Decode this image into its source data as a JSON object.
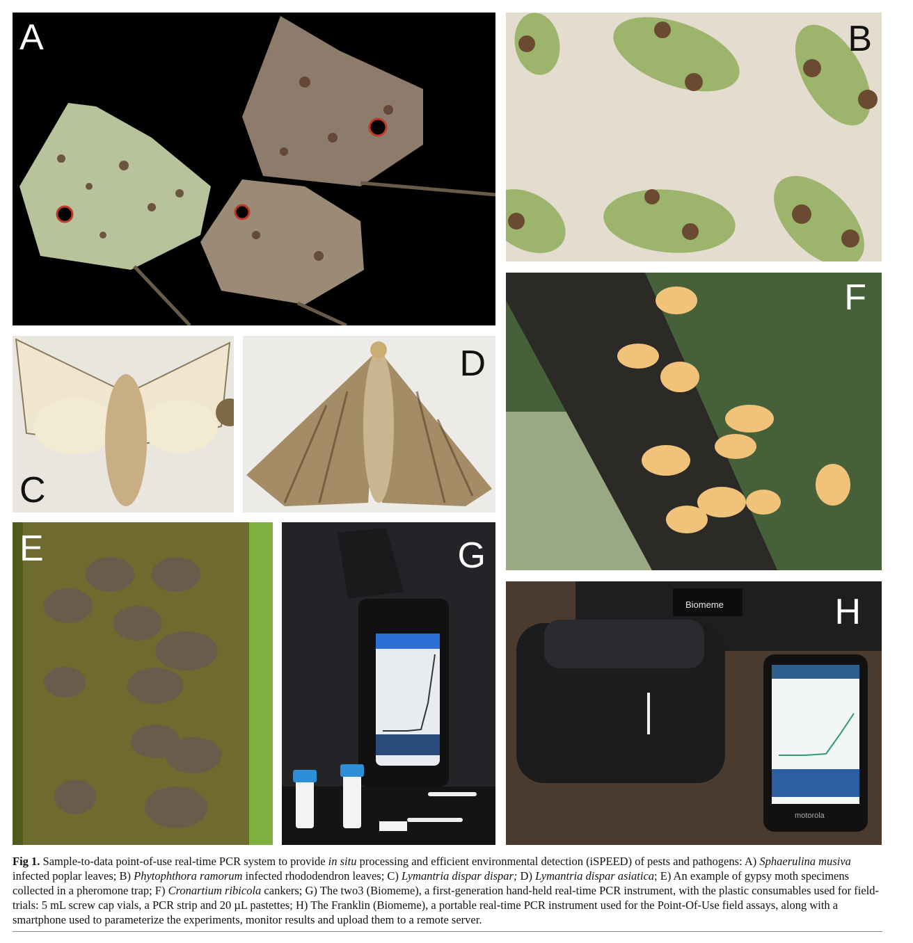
{
  "figure": {
    "panels": {
      "A": {
        "label": "A",
        "subject": "poplar leaves"
      },
      "B": {
        "label": "B",
        "subject": "rhododendron leaves"
      },
      "C": {
        "label": "C",
        "subject": "moth"
      },
      "D": {
        "label": "D",
        "subject": "moth"
      },
      "E": {
        "label": "E",
        "subject": "pheromone trap"
      },
      "F": {
        "label": "F",
        "subject": "cankers"
      },
      "G": {
        "label": "G",
        "subject": "two3 instrument"
      },
      "H": {
        "label": "H",
        "subject": "Franklin instrument",
        "brand_text": "Biomeme",
        "phone_brand": "motorola"
      }
    },
    "caption": {
      "lead": "Fig 1.",
      "s1": " Sample-to-data point-of-use real-time PCR system to provide ",
      "s1_italic": "in situ",
      "s2": " processing and efficient environmental detection (iSPEED) of pests and pathogens: A) ",
      "a_species": "Sphaerulina musiva",
      "a_text": " infected poplar leaves; B) ",
      "b_species": "Phytophthora ramorum",
      "b_text": " infected rhododendron leaves; C) ",
      "c_species": "Lymantria dispar dispar;",
      "c_text": " D) ",
      "d_species": "Lymantria dispar asiatica",
      "d_text": "; E) An example of gypsy moth specimens collected in a pheromone trap; F) ",
      "f_species": "Cronartium ribicola",
      "f_text": " cankers; G) The two3 (Biomeme), a first-generation hand-held real-time PCR instrument, with the plastic consumables used for field-trials: 5 mL screw cap vials, a PCR strip and 20 µL pastettes; H) The Franklin (Biomeme), a portable real-time PCR instrument used for the Point-Of-Use field assays, along with a smartphone used to parameterize the experiments, monitor results and upload them to a remote server."
    }
  },
  "colors": {
    "leaf_green": "#b9c79a",
    "leaf_brown": "#8a7a6a",
    "lesion": "#5a3b2a",
    "trap_green": "#5f6b24",
    "moth_brown": "#6e5a45",
    "canker_orange": "#f2c173"
  }
}
